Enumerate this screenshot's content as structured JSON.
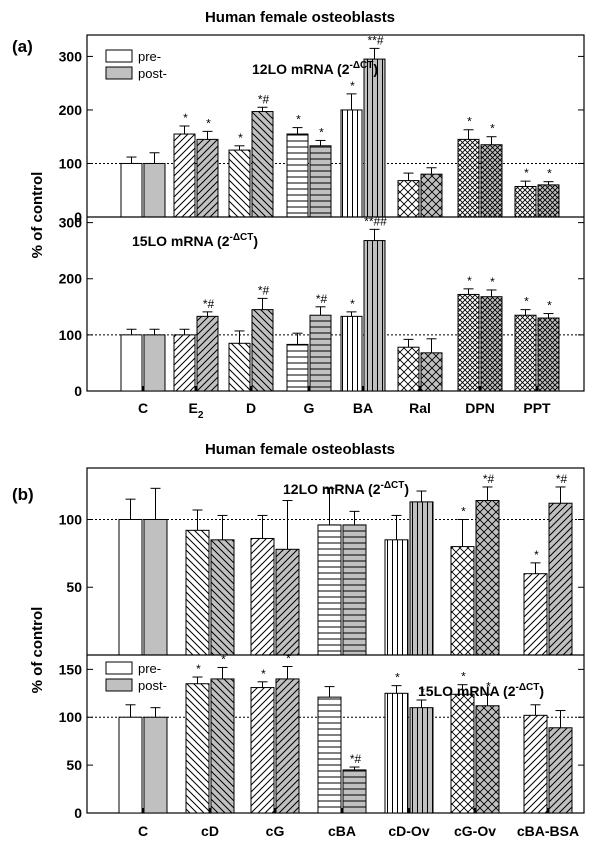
{
  "chart_data": [
    {
      "type": "bar",
      "panel": "(a)",
      "title": "Human female osteoblasts",
      "ylabel": "% of control",
      "legend": {
        "pre": "pre-",
        "post": "post-",
        "placement": "top-left of upper subplot"
      },
      "categories": [
        "C",
        "E",
        "D",
        "G",
        "BA",
        "Ral",
        "DPN",
        "PPT"
      ],
      "category_subscripts": [
        "",
        "2",
        "",
        "",
        "",
        "",
        "",
        ""
      ],
      "subplots": [
        {
          "title": "12LO mRNA (2",
          "title_sup": "-ΔCT",
          "title_end": ")",
          "ylim": [
            0,
            340
          ],
          "yticks": [
            0,
            100,
            200,
            300
          ],
          "reference_line": 100,
          "series": [
            {
              "name": "pre-",
              "values": [
                100,
                155,
                125,
                155,
                200,
                68,
                145,
                57
              ],
              "errors": [
                12,
                15,
                8,
                12,
                30,
                14,
                18,
                10
              ],
              "labels": [
                "",
                "*",
                "*",
                "*",
                "*",
                "",
                "*",
                "*"
              ]
            },
            {
              "name": "post-",
              "values": [
                100,
                145,
                197,
                133,
                295,
                80,
                135,
                60
              ],
              "errors": [
                20,
                15,
                8,
                10,
                20,
                12,
                15,
                6
              ],
              "labels": [
                "",
                "*",
                "*#",
                "*",
                "**#",
                "",
                "*",
                "*"
              ]
            }
          ]
        },
        {
          "title": "15LO mRNA (2",
          "title_sup": "-ΔCT",
          "title_end": ")",
          "ylim": [
            0,
            310
          ],
          "yticks": [
            0,
            100,
            200,
            300
          ],
          "reference_line": 100,
          "series": [
            {
              "name": "pre-",
              "values": [
                100,
                100,
                85,
                83,
                133,
                78,
                172,
                135
              ],
              "errors": [
                10,
                10,
                22,
                20,
                8,
                14,
                10,
                10
              ],
              "labels": [
                "",
                "",
                "",
                "",
                "*",
                "",
                "*",
                "*"
              ]
            },
            {
              "name": "post-",
              "values": [
                100,
                133,
                145,
                135,
                268,
                68,
                168,
                130
              ],
              "errors": [
                10,
                8,
                20,
                15,
                20,
                25,
                12,
                8
              ],
              "labels": [
                "",
                "*#",
                "*#",
                "*#",
                "**##",
                "",
                "*",
                "*"
              ]
            }
          ]
        }
      ]
    },
    {
      "type": "bar",
      "panel": "(b)",
      "title": "Human female osteoblasts",
      "ylabel": "% of control",
      "legend": {
        "pre": "pre-",
        "post": "post-",
        "placement": "top-left of lower subplot"
      },
      "categories": [
        "C",
        "cD",
        "cG",
        "cBA",
        "cD-Ov",
        "cG-Ov",
        "cBA-BSA"
      ],
      "subplots": [
        {
          "title": "12LO mRNA (2",
          "title_sup": "-ΔCT",
          "title_end": ")",
          "ylim": [
            0,
            138
          ],
          "yticks": [
            50,
            100
          ],
          "reference_line": 100,
          "series": [
            {
              "name": "pre-",
              "values": [
                100,
                92,
                86,
                96,
                85,
                80,
                60
              ],
              "errors": [
                15,
                15,
                17,
                27,
                18,
                20,
                8
              ],
              "labels": [
                "",
                "",
                "",
                "",
                "",
                "*",
                "*"
              ]
            },
            {
              "name": "post-",
              "values": [
                100,
                85,
                78,
                96,
                113,
                114,
                112
              ],
              "errors": [
                23,
                18,
                36,
                10,
                8,
                10,
                12
              ],
              "labels": [
                "",
                "",
                "",
                "",
                "",
                "*#",
                "*#"
              ]
            }
          ]
        },
        {
          "title": "15LO mRNA (2",
          "title_sup": "-ΔCT",
          "title_end": ")",
          "ylim": [
            0,
            165
          ],
          "yticks": [
            0,
            50,
            100,
            150
          ],
          "reference_line": 100,
          "series": [
            {
              "name": "pre-",
              "values": [
                100,
                135,
                131,
                121,
                125,
                124,
                102
              ],
              "errors": [
                13,
                7,
                6,
                11,
                8,
                10,
                11
              ],
              "labels": [
                "",
                "*",
                "*",
                "",
                "*",
                "*",
                ""
              ]
            },
            {
              "name": "post-",
              "values": [
                100,
                140,
                140,
                45,
                110,
                112,
                89
              ],
              "errors": [
                10,
                12,
                13,
                3,
                8,
                12,
                18
              ],
              "labels": [
                "",
                "*",
                "*",
                "*#",
                "*",
                "*",
                ""
              ]
            }
          ]
        }
      ]
    }
  ]
}
